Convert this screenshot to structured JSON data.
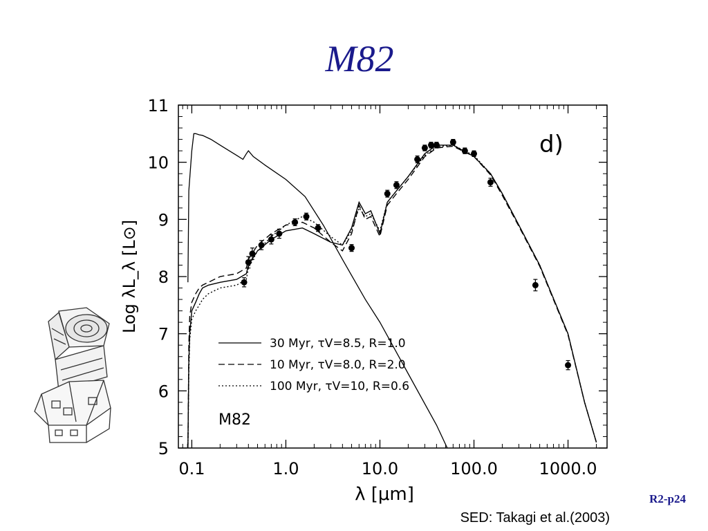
{
  "slide": {
    "title": "M82",
    "code": "R2-p24",
    "caption": "SED: Takagi et al.(2003)"
  },
  "decoration": {
    "icon": "space-telescope-icon"
  },
  "chart_data": {
    "type": "line",
    "title": "",
    "panel_label": "d)",
    "object_label": "M82",
    "xlabel": "λ [μm]",
    "ylabel": "Log λL_λ [L⊙]",
    "xscale": "log",
    "xlim": [
      0.072,
      2600
    ],
    "ylim": [
      5,
      11
    ],
    "xticks": [
      0.1,
      1.0,
      10.0,
      100.0,
      1000.0
    ],
    "xticklabels": [
      "0.1",
      "1.0",
      "10.0",
      "100.0",
      "1000.0"
    ],
    "yticks": [
      5,
      6,
      7,
      8,
      9,
      10,
      11
    ],
    "yticklabels": [
      "5",
      "6",
      "7",
      "8",
      "9",
      "10",
      "11"
    ],
    "grid": false,
    "legend_position": "lower-left",
    "series": [
      {
        "name": "30 Myr, τV=8.5, R=1.0",
        "style": "solid",
        "intrinsic_x": [
          0.091,
          0.093,
          0.1,
          0.105,
          0.11,
          0.12,
          0.13,
          0.16,
          0.2,
          0.25,
          0.3,
          0.35,
          0.38,
          0.4,
          0.45,
          0.6,
          1.0,
          1.6,
          2.5,
          4.0,
          7.0,
          10.0,
          20.0,
          40.0,
          52.0
        ],
        "intrinsic_y": [
          7.9,
          9.5,
          10.2,
          10.5,
          10.5,
          10.48,
          10.47,
          10.4,
          10.3,
          10.2,
          10.12,
          10.05,
          10.15,
          10.2,
          10.1,
          9.95,
          9.7,
          9.4,
          8.9,
          8.3,
          7.6,
          7.2,
          6.3,
          5.4,
          5.0
        ],
        "x": [
          0.091,
          0.093,
          0.095,
          0.1,
          0.11,
          0.12,
          0.13,
          0.15,
          0.2,
          0.3,
          0.38,
          0.4,
          0.5,
          0.7,
          1.0,
          1.5,
          2.0,
          3.0,
          4.0,
          5.0,
          6.0,
          7.0,
          8.0,
          10.0,
          12.0,
          15.0,
          20.0,
          30.0,
          40.0,
          60.0,
          100.0,
          150.0,
          200.0,
          300.0,
          500.0,
          1000.0,
          1500.0,
          2000.0
        ],
        "y": [
          5.0,
          6.5,
          7.0,
          7.4,
          7.55,
          7.7,
          7.8,
          7.85,
          7.9,
          7.95,
          8.05,
          8.2,
          8.45,
          8.65,
          8.8,
          8.85,
          8.75,
          8.6,
          8.55,
          8.85,
          9.3,
          9.1,
          9.15,
          8.75,
          9.3,
          9.5,
          9.75,
          10.15,
          10.3,
          10.3,
          10.1,
          9.8,
          9.45,
          8.9,
          8.2,
          7.0,
          5.8,
          5.1
        ]
      },
      {
        "name": "10 Myr, τV=8.0, R=2.0",
        "style": "dashed",
        "x": [
          0.091,
          0.093,
          0.095,
          0.1,
          0.11,
          0.12,
          0.13,
          0.15,
          0.2,
          0.3,
          0.38,
          0.4,
          0.5,
          0.7,
          1.0,
          1.5,
          2.0,
          3.0,
          4.0,
          5.0,
          6.0,
          7.0,
          8.0,
          10.0,
          12.0,
          15.0,
          20.0,
          30.0,
          40.0,
          60.0,
          100.0,
          150.0,
          200.0,
          300.0,
          500.0,
          1000.0,
          1500.0,
          2000.0
        ],
        "y": [
          5.0,
          6.8,
          7.3,
          7.55,
          7.7,
          7.8,
          7.85,
          7.9,
          8.0,
          8.05,
          8.15,
          8.3,
          8.55,
          8.75,
          8.9,
          8.95,
          8.85,
          8.6,
          8.45,
          8.75,
          9.25,
          9.0,
          9.05,
          8.7,
          9.25,
          9.45,
          9.7,
          10.1,
          10.25,
          10.28,
          10.1,
          9.78,
          9.42,
          8.88,
          8.18,
          6.98,
          5.8,
          5.1
        ]
      },
      {
        "name": "100 Myr, τV=10, R=0.6",
        "style": "dotted",
        "x": [
          0.091,
          0.093,
          0.095,
          0.1,
          0.11,
          0.12,
          0.13,
          0.15,
          0.2,
          0.3,
          0.38,
          0.4,
          0.5,
          0.7,
          1.0,
          1.5,
          2.0,
          3.0,
          4.0,
          5.0,
          6.0,
          7.0,
          8.0,
          10.0,
          12.0,
          15.0,
          20.0,
          30.0,
          40.0,
          60.0,
          100.0,
          150.0,
          200.0,
          300.0,
          500.0,
          1000.0,
          1500.0,
          2000.0
        ],
        "y": [
          5.0,
          6.3,
          6.9,
          7.25,
          7.4,
          7.5,
          7.6,
          7.7,
          7.8,
          7.85,
          7.95,
          8.15,
          8.45,
          8.7,
          8.9,
          9.05,
          8.95,
          8.7,
          8.55,
          8.8,
          9.2,
          9.05,
          9.1,
          8.8,
          9.3,
          9.5,
          9.75,
          10.12,
          10.27,
          10.3,
          10.12,
          9.8,
          9.45,
          8.9,
          8.2,
          7.0,
          5.8,
          5.1
        ]
      }
    ],
    "observations": {
      "x": [
        0.36,
        0.4,
        0.44,
        0.55,
        0.7,
        0.85,
        1.25,
        1.65,
        2.2,
        5.0,
        12.0,
        15.0,
        25.0,
        30.0,
        35.0,
        40.0,
        60.0,
        80.0,
        100.0,
        150.0,
        450.0,
        1000.0
      ],
      "y": [
        7.9,
        8.25,
        8.4,
        8.55,
        8.65,
        8.75,
        8.95,
        9.05,
        8.85,
        8.5,
        9.45,
        9.6,
        10.05,
        10.25,
        10.3,
        10.3,
        10.35,
        10.2,
        10.15,
        9.65,
        7.85,
        6.45
      ],
      "err": [
        0.08,
        0.1,
        0.1,
        0.08,
        0.08,
        0.08,
        0.06,
        0.06,
        0.06,
        0.06,
        0.06,
        0.06,
        0.06,
        0.05,
        0.05,
        0.05,
        0.05,
        0.05,
        0.05,
        0.07,
        0.1,
        0.08
      ]
    }
  }
}
